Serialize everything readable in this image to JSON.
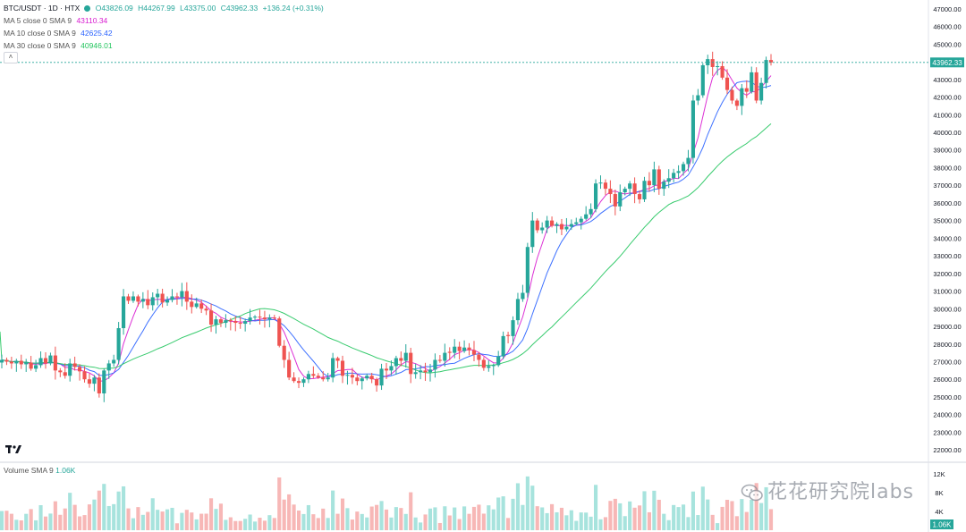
{
  "header": {
    "symbol": "BTC/USDT · 1D · HTX",
    "open": "O43826.09",
    "high": "H44267.99",
    "low": "L43375.00",
    "close": "C43962.33",
    "change": "+136.24 (+0.31%)"
  },
  "indicators": [
    {
      "label": "MA 5 close 0 SMA 9",
      "value": "43110.34",
      "color": "#d81bd0"
    },
    {
      "label": "MA 10 close 0 SMA 9",
      "value": "42625.42",
      "color": "#2962ff"
    },
    {
      "label": "MA 30 close 0 SMA 9",
      "value": "40946.01",
      "color": "#22c55e"
    }
  ],
  "collapse_icon": "chevron-up-icon",
  "volume": {
    "label": "Volume SMA 9",
    "value": "1.06K",
    "last_label": "1.06K",
    "axis_ticks": [
      "12K",
      "8K",
      "4K"
    ],
    "axis_values": [
      12000,
      8000,
      4000
    ]
  },
  "price_axis_ticks": [
    "47000.00",
    "46000.00",
    "45000.00",
    "44000.00",
    "43000.00",
    "42000.00",
    "41000.00",
    "40000.00",
    "39000.00",
    "38000.00",
    "37000.00",
    "36000.00",
    "35000.00",
    "34000.00",
    "33000.00",
    "32000.00",
    "31000.00",
    "30000.00",
    "29000.00",
    "28000.00",
    "27000.00",
    "26000.00",
    "25000.00",
    "24000.00",
    "23000.00",
    "22000.00"
  ],
  "last_price_label": "43962.33",
  "watermark": "花花研究院labs",
  "logo": "TV",
  "colors": {
    "up": "#26a69a",
    "down": "#ef5350",
    "vol_up": "#a7e3dd",
    "vol_down": "#f7b7b6",
    "ma5": "#d81bd0",
    "ma10": "#2962ff",
    "ma30": "#22c55e"
  },
  "chart_data": {
    "type": "candlestick",
    "ylim": [
      21500,
      47500
    ],
    "grid": false,
    "close": [
      27100,
      27000,
      26900,
      27050,
      26850,
      26950,
      26600,
      26800,
      27200,
      26900,
      27350,
      26500,
      26400,
      26200,
      26900,
      26700,
      26450,
      26000,
      25750,
      26100,
      25200,
      26500,
      26900,
      27100,
      28900,
      30700,
      30450,
      30700,
      30400,
      30550,
      30200,
      30650,
      30850,
      30350,
      30500,
      30700,
      30650,
      31000,
      30400,
      30100,
      30300,
      30000,
      29900,
      29100,
      29400,
      29200,
      29350,
      29300,
      29200,
      29150,
      29300,
      29500,
      29550,
      29500,
      29400,
      29500,
      29450,
      27900,
      27100,
      26100,
      25900,
      25800,
      26000,
      26300,
      26200,
      26100,
      26000,
      26100,
      27200,
      27050,
      26200,
      26250,
      26100,
      25900,
      26050,
      26200,
      26000,
      25650,
      26600,
      26500,
      26750,
      27200,
      27050,
      27500,
      26300,
      26400,
      26500,
      26400,
      26550,
      27100,
      27050,
      27500,
      27500,
      27850,
      27600,
      27800,
      27650,
      27400,
      27100,
      26650,
      26750,
      26800,
      27300,
      28450,
      28450,
      29350,
      30550,
      30900,
      33500,
      35000,
      34450,
      34600,
      35000,
      34700,
      34800,
      34500,
      34650,
      34800,
      34900,
      35100,
      35350,
      35650,
      37100,
      37150,
      36800,
      36500,
      35800,
      36600,
      36800,
      37100,
      36500,
      36200,
      37250,
      37000,
      37900,
      36800,
      37200,
      37400,
      37700,
      37800,
      38200,
      38550,
      41800,
      42100,
      43800,
      44150,
      43700,
      43750,
      43100,
      42400,
      41800,
      41500,
      42500,
      42300,
      43400,
      41800,
      42800,
      44100,
      43962
    ]
  }
}
